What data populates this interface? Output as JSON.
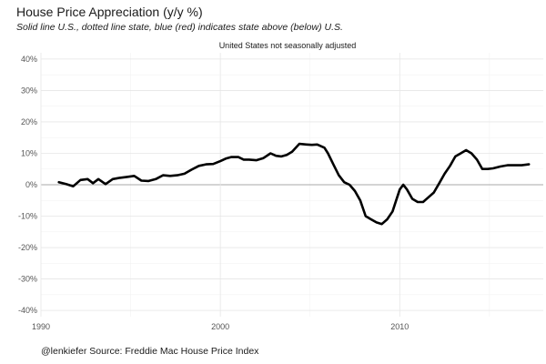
{
  "chart_data": {
    "type": "line",
    "title": "House Price Appreciation (y/y %)",
    "subtitle": "Solid line U.S., dotted line state, blue (red) indicates state above (below) U.S.",
    "facet_label": "United States not seasonally adjusted",
    "caption": "@lenkiefer Source: Freddie Mac House Price Index",
    "xlabel": "",
    "ylabel": "",
    "xlim": [
      1990,
      2018
    ],
    "ylim": [
      -0.42,
      0.42
    ],
    "x_ticks": [
      1990,
      2000,
      2010
    ],
    "y_ticks": [
      {
        "value": 0.4,
        "label": "40%"
      },
      {
        "value": 0.3,
        "label": "30%"
      },
      {
        "value": 0.2,
        "label": "20%"
      },
      {
        "value": 0.1,
        "label": "10%"
      },
      {
        "value": 0.0,
        "label": "0%"
      },
      {
        "value": -0.1,
        "label": "-10%"
      },
      {
        "value": -0.2,
        "label": "-20%"
      },
      {
        "value": -0.3,
        "label": "-30%"
      },
      {
        "value": -0.4,
        "label": "-40%"
      }
    ],
    "grid": true,
    "series": [
      {
        "line_color": "#000000",
        "x": [
          1991.0,
          1991.4,
          1991.8,
          1992.2,
          1992.6,
          1992.9,
          1993.2,
          1993.6,
          1994.0,
          1994.4,
          1994.8,
          1995.2,
          1995.6,
          1996.0,
          1996.4,
          1996.8,
          1997.2,
          1997.6,
          1998.0,
          1998.4,
          1998.8,
          1999.2,
          1999.6,
          2000.0,
          2000.3,
          2000.6,
          2001.0,
          2001.3,
          2001.6,
          2002.0,
          2002.4,
          2002.8,
          2003.1,
          2003.4,
          2003.7,
          2004.0,
          2004.4,
          2004.8,
          2005.1,
          2005.4,
          2005.8,
          2006.0,
          2006.3,
          2006.6,
          2006.9,
          2007.2,
          2007.5,
          2007.8,
          2008.1,
          2008.4,
          2008.7,
          2009.0,
          2009.3,
          2009.6,
          2009.8,
          2010.0,
          2010.2,
          2010.4,
          2010.7,
          2011.0,
          2011.3,
          2011.6,
          2011.9,
          2012.2,
          2012.5,
          2012.8,
          2013.1,
          2013.4,
          2013.7,
          2014.0,
          2014.3,
          2014.6,
          2014.9,
          2015.2,
          2015.6,
          2016.0,
          2016.4,
          2016.8,
          2017.2
        ],
        "y": [
          0.008,
          0.002,
          -0.005,
          0.015,
          0.018,
          0.005,
          0.018,
          0.002,
          0.018,
          0.022,
          0.025,
          0.028,
          0.013,
          0.012,
          0.018,
          0.03,
          0.028,
          0.03,
          0.035,
          0.048,
          0.06,
          0.065,
          0.066,
          0.075,
          0.083,
          0.088,
          0.088,
          0.08,
          0.08,
          0.078,
          0.085,
          0.1,
          0.092,
          0.09,
          0.095,
          0.105,
          0.13,
          0.128,
          0.127,
          0.128,
          0.118,
          0.1,
          0.065,
          0.03,
          0.008,
          0.0,
          -0.02,
          -0.05,
          -0.1,
          -0.11,
          -0.12,
          -0.125,
          -0.11,
          -0.085,
          -0.05,
          -0.015,
          0.0,
          -0.015,
          -0.045,
          -0.055,
          -0.055,
          -0.04,
          -0.025,
          0.005,
          0.035,
          0.06,
          0.09,
          0.1,
          0.11,
          0.1,
          0.08,
          0.05,
          0.05,
          0.052,
          0.058,
          0.062,
          0.062,
          0.062,
          0.065
        ]
      }
    ]
  }
}
